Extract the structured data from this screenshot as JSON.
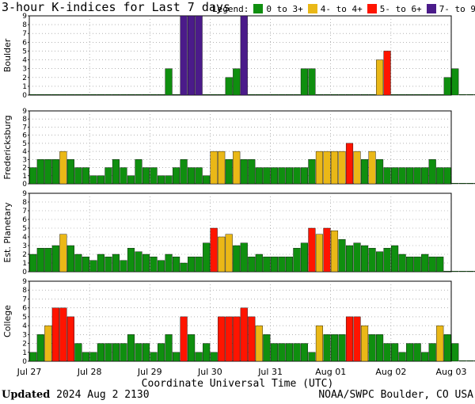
{
  "title": "3-hour K-indices for Last 7 days",
  "legend": {
    "label": "Legend:",
    "items": [
      {
        "label": "0 to 3+",
        "color": "#0f8f0f"
      },
      {
        "label": "4- to 4+",
        "color": "#eab817"
      },
      {
        "label": "5- to 6+",
        "color": "#ff1400"
      },
      {
        "label": "7- to 9",
        "color": "#4b1b8a"
      }
    ]
  },
  "footer": {
    "updated_label": "Updated",
    "updated_value": "2024 Aug  2 2130",
    "credit": "NOAA/SWPC Boulder, CO USA"
  },
  "chart_data": {
    "type": "bar",
    "xlabel": "Coordinate Universal Time (UTC)",
    "x_ticks": [
      "Jul 27",
      "Jul 28",
      "Jul 29",
      "Jul 30",
      "Jul 31",
      "Aug 01",
      "Aug 02",
      "Aug 03"
    ],
    "ylim": [
      0,
      9
    ],
    "y_ticks": [
      0,
      1,
      2,
      3,
      4,
      5,
      6,
      7,
      8,
      9
    ],
    "grid": true,
    "intervals_per_day": 8,
    "series": [
      {
        "name": "Boulder",
        "values": [
          0,
          0,
          0,
          0,
          0,
          0,
          0,
          0,
          0,
          0,
          0,
          0,
          0,
          0,
          0,
          0,
          0,
          0,
          3,
          0,
          9,
          9,
          9,
          0,
          0,
          0,
          2,
          3,
          9,
          0,
          0,
          0,
          0,
          0,
          0,
          0,
          3,
          3,
          0,
          0,
          0,
          0,
          0,
          0,
          0,
          0,
          4,
          5,
          0,
          0,
          0,
          0,
          0,
          0,
          0,
          2,
          3,
          0,
          0,
          0,
          0,
          0,
          0,
          0
        ]
      },
      {
        "name": "Fredericksburg",
        "values": [
          2,
          3,
          3,
          3,
          4,
          3,
          2,
          2,
          1,
          1,
          2,
          3,
          2,
          1,
          3,
          2,
          2,
          1,
          1,
          2,
          3,
          2,
          2,
          1,
          4,
          4,
          3,
          4,
          3,
          3,
          2,
          2,
          2,
          2,
          2,
          2,
          2,
          3,
          4,
          4,
          4,
          4,
          5,
          4,
          3,
          4,
          3,
          2,
          2,
          2,
          2,
          2,
          2,
          3,
          2,
          2,
          0,
          0,
          0,
          0,
          0,
          0,
          0,
          0
        ]
      },
      {
        "name": "Est. Planetary",
        "values": [
          2,
          2.7,
          2.7,
          3,
          4.3,
          3,
          2,
          1.7,
          1.3,
          2,
          1.7,
          2,
          1.3,
          2.7,
          2.3,
          2,
          1.7,
          1.3,
          2,
          1.7,
          1,
          1.7,
          1.7,
          3.3,
          5,
          4,
          4.3,
          3,
          3.3,
          1.7,
          2,
          1.7,
          1.7,
          1.7,
          1.7,
          2.7,
          3.3,
          5,
          4.3,
          5,
          4.7,
          3.7,
          3,
          3.3,
          3,
          2.7,
          2.3,
          2.7,
          3,
          2,
          1.7,
          1.7,
          2,
          1.7,
          1.7,
          0,
          0,
          0,
          0,
          0,
          0,
          0,
          0,
          0
        ]
      },
      {
        "name": "College",
        "values": [
          1,
          3,
          4,
          6,
          6,
          5,
          2,
          1,
          1,
          2,
          2,
          2,
          2,
          3,
          2,
          2,
          1,
          2,
          3,
          1,
          5,
          3,
          1,
          2,
          1,
          5,
          5,
          5,
          6,
          5,
          4,
          3,
          2,
          2,
          2,
          2,
          2,
          1,
          4,
          3,
          3,
          3,
          5,
          5,
          4,
          3,
          3,
          2,
          2,
          1,
          2,
          2,
          1,
          2,
          4,
          3,
          2,
          0,
          0,
          0,
          0,
          0,
          0,
          0
        ]
      }
    ]
  }
}
